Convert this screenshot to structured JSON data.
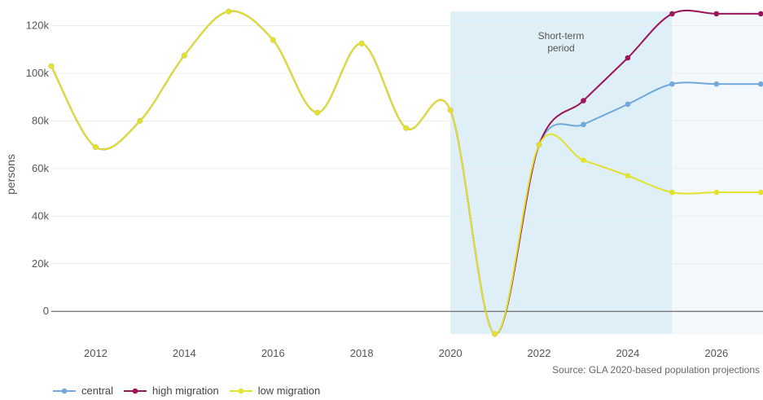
{
  "chart_data": {
    "type": "line",
    "ylabel": "persons",
    "xlim": [
      2011,
      2027.05
    ],
    "ylim": [
      -9500,
      126000
    ],
    "x_ticks": [
      2012,
      2014,
      2016,
      2018,
      2020,
      2022,
      2024,
      2026
    ],
    "y_ticks": [
      0,
      20000,
      40000,
      60000,
      80000,
      100000,
      120000
    ],
    "y_tick_labels": [
      "0",
      "20k",
      "40k",
      "60k",
      "80k",
      "100k",
      "120k"
    ],
    "annotation": "Short-term\nperiod",
    "shaded_regions": [
      {
        "from": 2020,
        "to": 2025,
        "color": "#dfeff7"
      },
      {
        "from": 2025,
        "to": 2027.05,
        "color": "#f3f8fc"
      }
    ],
    "grid": true,
    "legend_position": "bottom-left",
    "series": [
      {
        "name": "central",
        "color": "#72a9db",
        "x": [
          2011,
          2012,
          2013,
          2014,
          2015,
          2016,
          2017,
          2018,
          2019,
          2020,
          2021,
          2022,
          2023,
          2024,
          2025,
          2026,
          2027
        ],
        "values": [
          103000,
          69000,
          80000,
          107500,
          126000,
          114000,
          83500,
          112500,
          77000,
          84500,
          -9500,
          70000,
          78500,
          87000,
          95500,
          95500,
          95500
        ]
      },
      {
        "name": "high migration",
        "color": "#9c1459",
        "x": [
          2011,
          2012,
          2013,
          2014,
          2015,
          2016,
          2017,
          2018,
          2019,
          2020,
          2021,
          2022,
          2023,
          2024,
          2025,
          2026,
          2027
        ],
        "values": [
          103000,
          69000,
          80000,
          107500,
          126000,
          114000,
          83500,
          112500,
          77000,
          84500,
          -9500,
          70000,
          88500,
          106500,
          125000,
          125000,
          125000
        ]
      },
      {
        "name": "low migration",
        "color": "#e0e22c",
        "x": [
          2011,
          2012,
          2013,
          2014,
          2015,
          2016,
          2017,
          2018,
          2019,
          2020,
          2021,
          2022,
          2023,
          2024,
          2025,
          2026,
          2027
        ],
        "values": [
          103000,
          69000,
          80000,
          107500,
          126000,
          114000,
          83500,
          112500,
          77000,
          84500,
          -9500,
          70000,
          63500,
          57000,
          50000,
          50000,
          50000
        ]
      }
    ]
  },
  "source_text": "Source: GLA 2020-based population projections"
}
